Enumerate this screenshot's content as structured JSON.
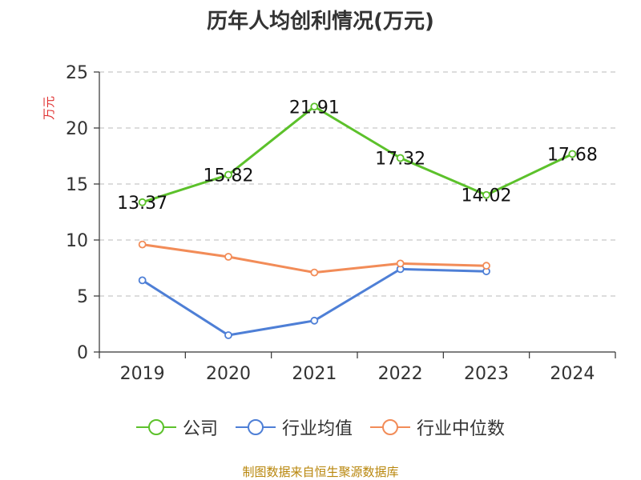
{
  "chart_data": {
    "type": "line",
    "title": "历年人均创利情况(万元)",
    "ylabel": "万元",
    "xlabel": "",
    "categories": [
      "2019",
      "2020",
      "2021",
      "2022",
      "2023",
      "2024"
    ],
    "ylim": [
      0,
      25
    ],
    "yticks": [
      0,
      5,
      10,
      15,
      20,
      25
    ],
    "grid": true,
    "legend_position": "bottom",
    "series": [
      {
        "name": "公司",
        "color": "#5cc12b",
        "values": [
          13.37,
          15.82,
          21.91,
          17.32,
          14.02,
          17.68
        ],
        "labels": [
          "13.37",
          "15.82",
          "21.91",
          "17.32",
          "14.02",
          "17.68"
        ]
      },
      {
        "name": "行业均值",
        "color": "#4e7fd6",
        "values": [
          6.4,
          1.5,
          2.8,
          7.4,
          7.2,
          null
        ]
      },
      {
        "name": "行业中位数",
        "color": "#f28c58",
        "values": [
          9.6,
          8.5,
          7.1,
          7.9,
          7.7,
          null
        ]
      }
    ]
  },
  "legend": {
    "company": "公司",
    "industry_avg": "行业均值",
    "industry_median": "行业中位数"
  },
  "source": "制图数据来自恒生聚源数据库"
}
